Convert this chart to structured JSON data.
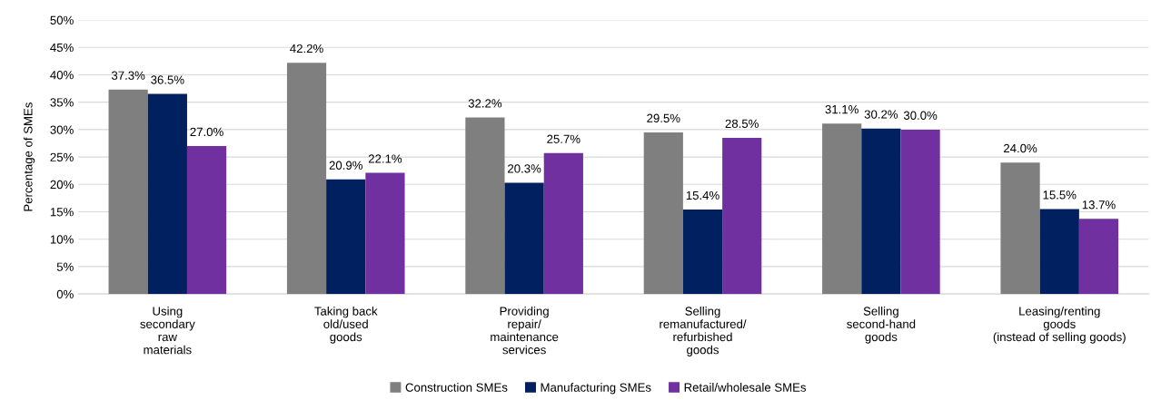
{
  "chart_data": {
    "type": "bar",
    "ylabel": "Percentage of SMEs",
    "categories": [
      "Using\nsecondary\nraw\nmaterials",
      "Taking back\nold/used\ngoods",
      "Providing\nrepair/\nmaintenance\nservices",
      "Selling\nremanufactured/\nrefurbished\ngoods",
      "Selling\nsecond-hand\ngoods",
      "Leasing/renting\ngoods\n(instead of selling goods)"
    ],
    "series": [
      {
        "name": "Construction SMEs",
        "color": "#7f7f7f",
        "values": [
          37.3,
          42.2,
          32.2,
          29.5,
          31.1,
          24.0
        ],
        "value_labels": [
          "37.3%",
          "42.2%",
          "32.2%",
          "29.5%",
          "31.1%",
          "24.0%"
        ]
      },
      {
        "name": "Manufacturing SMEs",
        "color": "#002060",
        "values": [
          36.5,
          20.9,
          20.3,
          15.4,
          30.2,
          15.5
        ],
        "value_labels": [
          "36.5%",
          "20.9%",
          "20.3%",
          "15.4%",
          "30.2%",
          "15.5%"
        ]
      },
      {
        "name": "Retail/wholesale SMEs",
        "color": "#7030a0",
        "values": [
          27.0,
          22.1,
          25.7,
          28.5,
          30.0,
          13.7
        ],
        "value_labels": [
          "27.0%",
          "22.1%",
          "25.7%",
          "28.5%",
          "30.0%",
          "13.7%"
        ]
      }
    ],
    "ylim": [
      0,
      50
    ],
    "yticks": [
      {
        "value": 0,
        "label": "0%"
      },
      {
        "value": 5,
        "label": "5%"
      },
      {
        "value": 10,
        "label": "10%"
      },
      {
        "value": 15,
        "label": "15%"
      },
      {
        "value": 20,
        "label": "20%"
      },
      {
        "value": 25,
        "label": "25%"
      },
      {
        "value": 30,
        "label": "30%"
      },
      {
        "value": 35,
        "label": "35%"
      },
      {
        "value": 40,
        "label": "40%"
      },
      {
        "value": 45,
        "label": "45%"
      },
      {
        "value": 50,
        "label": "50%"
      }
    ],
    "grid": "y",
    "legend": "bottom"
  }
}
